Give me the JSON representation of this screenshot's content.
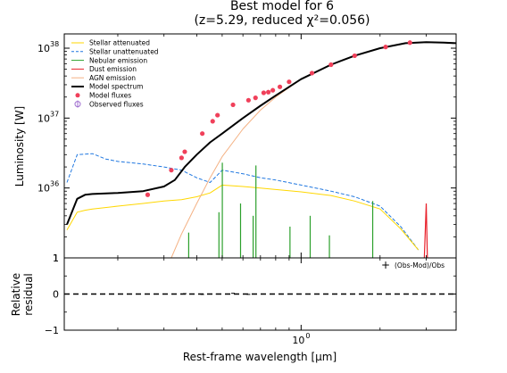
{
  "chart_data": [
    {
      "type": "line",
      "title": "Best model for 6",
      "subtitle": "(z=5.29, reduced χ²=0.056)",
      "xlabel": "Rest-frame wavelength [μm]",
      "ylabel": "Luminosity [W]",
      "xscale": "log",
      "yscale": "log",
      "xlim": [
        0.125,
        3.9
      ],
      "ylim": [
        1e+35,
        1.6e+38
      ],
      "x_ticks": [
        {
          "value": 1.0,
          "label": "10",
          "exp": "0"
        }
      ],
      "y_ticks": [
        {
          "value": 1e+36,
          "label": "10",
          "exp": "36"
        },
        {
          "value": 1e+37,
          "label": "10",
          "exp": "37"
        },
        {
          "value": 1e+38,
          "label": "10",
          "exp": "38"
        }
      ],
      "y_extra_tick": {
        "value": 1e+35,
        "label": "1"
      },
      "legend": {
        "position": "top-left",
        "entries": [
          {
            "label": "Stellar attenuated",
            "color": "#ffd700",
            "style": "solid"
          },
          {
            "label": "Stellar unattenuated",
            "color": "#1f77e0",
            "style": "dashed"
          },
          {
            "label": "Nebular emission",
            "color": "#2ca02c",
            "style": "solid"
          },
          {
            "label": "Dust emission",
            "color": "#e8202a",
            "style": "solid"
          },
          {
            "label": "AGN emission",
            "color": "#f4b183",
            "style": "solid"
          },
          {
            "label": "Model spectrum",
            "color": "#000000",
            "style": "thick"
          },
          {
            "label": "Model fluxes",
            "color": "#f0405a",
            "style": "dot"
          },
          {
            "label": "Observed fluxes",
            "color": "#a070d0",
            "style": "errorbar"
          }
        ]
      },
      "series": [
        {
          "name": "Stellar unattenuated",
          "color": "#1f77e0",
          "x": [
            0.128,
            0.14,
            0.16,
            0.18,
            0.2,
            0.25,
            0.3,
            0.35,
            0.4,
            0.45,
            0.5,
            0.6,
            0.7,
            0.8,
            1.0,
            1.3,
            1.6,
            2.0,
            2.4,
            2.8
          ],
          "y": [
            1.2e+36,
            3e+36,
            3.1e+36,
            2.6e+36,
            2.4e+36,
            2.2e+36,
            2e+36,
            1.8e+36,
            1.4e+36,
            1.2e+36,
            1.8e+36,
            1.6e+36,
            1.4e+36,
            1.3e+36,
            1.1e+36,
            9e+35,
            7.5e+35,
            5.5e+35,
            2.8e+35,
            1.3e+35
          ]
        },
        {
          "name": "Stellar attenuated",
          "color": "#ffd700",
          "x": [
            0.128,
            0.14,
            0.15,
            0.16,
            0.2,
            0.25,
            0.3,
            0.35,
            0.4,
            0.45,
            0.5,
            0.6,
            0.7,
            0.8,
            1.0,
            1.3,
            1.6,
            2.0,
            2.4,
            2.8
          ],
          "y": [
            2.5e+35,
            4.5e+35,
            4.8e+35,
            5e+35,
            5.5e+35,
            6e+35,
            6.5e+35,
            6.8e+35,
            7.5e+35,
            8.5e+35,
            1.1e+36,
            1.05e+36,
            1e+36,
            9.5e+35,
            8.8e+35,
            7.8e+35,
            6.5e+35,
            5e+35,
            2.6e+35,
            1.3e+35
          ]
        },
        {
          "name": "AGN emission",
          "color": "#f4b183",
          "x": [
            0.32,
            0.35,
            0.4,
            0.45,
            0.5,
            0.6,
            0.7,
            0.8,
            1.0,
            1.3,
            1.6,
            2.0,
            2.5,
            3.0,
            3.5,
            3.9
          ],
          "y": [
            1e+35,
            2.2e+35,
            6e+35,
            1.4e+36,
            2.8e+36,
            7e+36,
            1.3e+37,
            2e+37,
            3.6e+37,
            5.8e+37,
            7.8e+37,
            1e+38,
            1.18e+38,
            1.22e+38,
            1.2e+38,
            1.18e+38
          ]
        },
        {
          "name": "Model spectrum",
          "color": "#000000",
          "x": [
            0.128,
            0.14,
            0.15,
            0.16,
            0.2,
            0.25,
            0.3,
            0.33,
            0.36,
            0.4,
            0.45,
            0.5,
            0.6,
            0.7,
            0.8,
            1.0,
            1.3,
            1.6,
            2.0,
            2.5,
            3.0,
            3.5,
            3.9
          ],
          "y": [
            3e+35,
            7e+35,
            8e+35,
            8.2e+35,
            8.5e+35,
            9e+35,
            1.05e+36,
            1.3e+36,
            2e+36,
            3e+36,
            4.5e+36,
            6e+36,
            1e+37,
            1.5e+37,
            2.1e+37,
            3.6e+37,
            5.8e+37,
            7.8e+37,
            1e+38,
            1.18e+38,
            1.22e+38,
            1.2e+38,
            1.18e+38
          ]
        }
      ],
      "nebular_lines": {
        "name": "Nebular emission",
        "color": "#2ca02c",
        "x": [
          0.1216,
          0.3727,
          0.4861,
          0.5007,
          0.5876,
          0.6563,
          0.6725,
          0.9069,
          1.083,
          1.282,
          1.875
        ],
        "y": [
          1.6e+36,
          2.3e+35,
          4.5e+35,
          2.3e+36,
          6e+35,
          4e+35,
          2.1e+36,
          2.8e+35,
          4e+35,
          2.1e+35,
          6.5e+35
        ]
      },
      "dust_peak": {
        "name": "Dust emission",
        "color": "#e8202a",
        "x": [
          2.95,
          3.0,
          3.03
        ],
        "y": [
          1e+35,
          6e+35,
          1e+35
        ]
      },
      "model_fluxes": {
        "name": "Model fluxes",
        "color": "#f0405a",
        "x": [
          0.26,
          0.32,
          0.35,
          0.36,
          0.42,
          0.46,
          0.48,
          0.55,
          0.63,
          0.67,
          0.72,
          0.75,
          0.78,
          0.83,
          0.9,
          1.1,
          1.3,
          1.6,
          2.1,
          2.6
        ],
        "y": [
          8e+35,
          1.8e+36,
          2.7e+36,
          3.3e+36,
          6e+36,
          9e+36,
          1.1e+37,
          1.55e+37,
          1.8e+37,
          1.95e+37,
          2.3e+37,
          2.35e+37,
          2.5e+37,
          2.8e+37,
          3.3e+37,
          4.4e+37,
          5.8e+37,
          7.8e+37,
          1.04e+38,
          1.2e+38
        ]
      }
    },
    {
      "type": "scatter",
      "xlabel": "Rest-frame wavelength [μm]",
      "ylabel": "Relative residual",
      "ylabel_lines": [
        "Relative",
        "residual"
      ],
      "ylim": [
        -1,
        1
      ],
      "y_ticks": [
        -1,
        0,
        1
      ],
      "legend": {
        "position": "top-right",
        "entries": [
          {
            "label": "(Obs-Mod)/Obs",
            "marker": "+",
            "color": "#000000"
          }
        ]
      },
      "zero_line": {
        "y": 0,
        "style": "dashed",
        "color": "#000000"
      },
      "residuals": {
        "x": [
          0.36,
          0.42,
          0.48,
          0.55,
          0.63,
          0.72
        ],
        "y": [
          0.01,
          -0.01,
          0.0,
          0.02,
          -0.01,
          0.0
        ]
      }
    }
  ]
}
